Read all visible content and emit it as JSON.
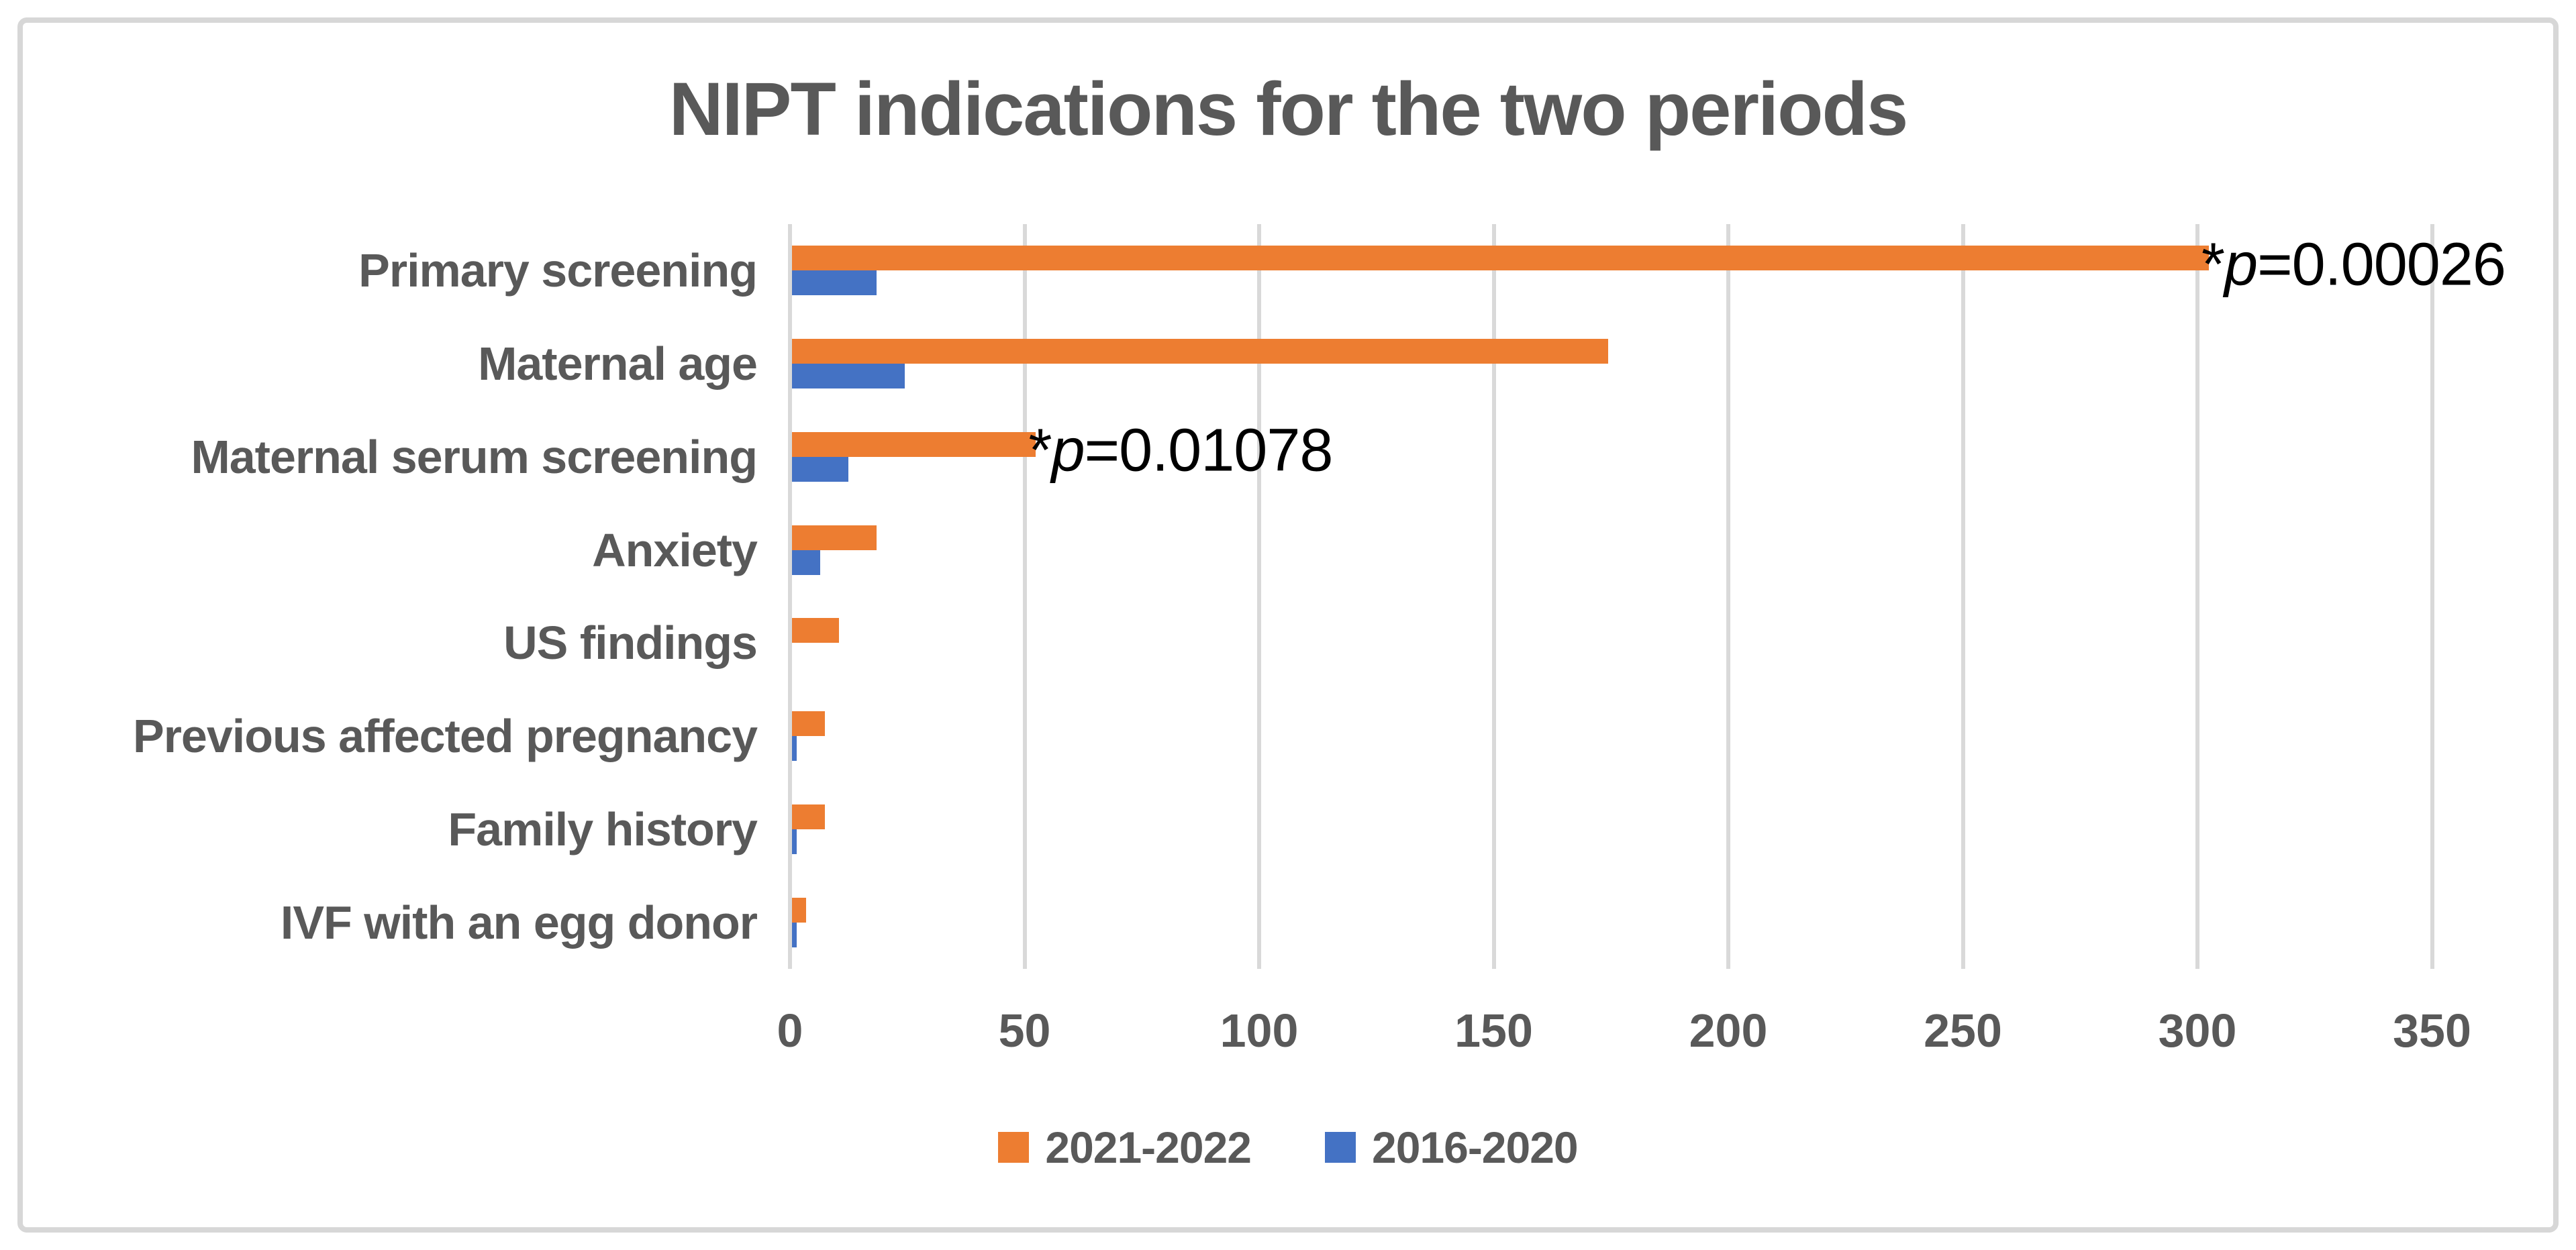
{
  "title": "NIPT indications for the two periods",
  "colors": {
    "series_orange": "#ED7D31",
    "series_blue": "#4472C4",
    "text_gray": "#595959",
    "gridline": "#D9D9D9",
    "frame_border": "#D7D7D7",
    "annotation_text": "#000000",
    "background": "#FFFFFF"
  },
  "chart_data": {
    "type": "bar",
    "orientation": "horizontal",
    "title": "NIPT indications for the two periods",
    "xlabel": "",
    "ylabel": "",
    "categories": [
      "Primary screening",
      "Maternal age",
      "Maternal serum screening",
      "Anxiety",
      "US findings",
      "Previous affected pregnancy",
      "Family history",
      "IVF with an egg donor"
    ],
    "series": [
      {
        "name": "2021-2022",
        "color": "#ED7D31",
        "values": [
          302,
          174,
          52,
          18,
          10,
          7,
          7,
          3
        ]
      },
      {
        "name": "2016-2020",
        "color": "#4472C4",
        "values": [
          18,
          24,
          12,
          6,
          0,
          1,
          1,
          1
        ]
      }
    ],
    "annotations": [
      {
        "category": "Primary screening",
        "series": "2021-2022",
        "text": "*p=0.00026"
      },
      {
        "category": "Maternal serum screening",
        "series": "2021-2022",
        "text": "*p=0.01078"
      }
    ],
    "xlim": [
      0,
      350
    ],
    "x_ticks": [
      0,
      50,
      100,
      150,
      200,
      250,
      300,
      350
    ],
    "grid": true,
    "legend_position": "bottom"
  }
}
